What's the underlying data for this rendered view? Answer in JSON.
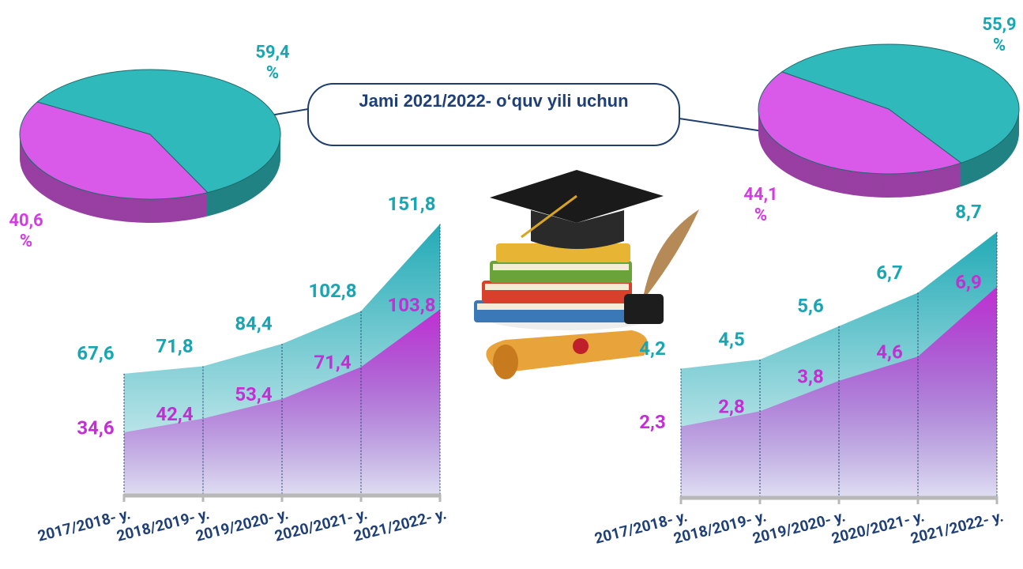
{
  "chart_data": [
    {
      "type": "pie",
      "values": [
        59.4,
        40.6
      ],
      "value_labels": [
        "59,4 %",
        "40,6 %"
      ],
      "colors": [
        "#2fb9bb",
        "#d95ae8"
      ]
    },
    {
      "type": "pie",
      "values": [
        55.9,
        44.1
      ],
      "value_labels": [
        "55,9 %",
        "44,1 %"
      ],
      "colors": [
        "#2fb9bb",
        "#d95ae8"
      ]
    },
    {
      "type": "area",
      "categories": [
        "2017/2018- y.",
        "2018/2019- y.",
        "2019/2020- y.",
        "2020/2021- y.",
        "2021/2022- y."
      ],
      "ylim": [
        0,
        160
      ],
      "series": [
        {
          "color": "#17a6b2",
          "values": [
            67.6,
            71.8,
            84.4,
            102.8,
            151.8
          ],
          "value_labels": [
            "67,6",
            "71,8",
            "84,4",
            "102,8",
            "151,8"
          ]
        },
        {
          "color": "#c22fd3",
          "values": [
            34.6,
            42.4,
            53.4,
            71.4,
            103.8
          ],
          "value_labels": [
            "34,6",
            "42,4",
            "53,4",
            "71,4",
            "103,8"
          ]
        }
      ]
    },
    {
      "type": "area",
      "categories": [
        "2017/2018- y.",
        "2018/2019- y.",
        "2019/2020- y.",
        "2020/2021- y.",
        "2021/2022- y."
      ],
      "ylim": [
        0,
        9
      ],
      "series": [
        {
          "color": "#17a6b2",
          "values": [
            4.2,
            4.5,
            5.6,
            6.7,
            8.7
          ],
          "value_labels": [
            "4,2",
            "4,5",
            "5,6",
            "6,7",
            "8,7"
          ]
        },
        {
          "color": "#c22fd3",
          "values": [
            2.3,
            2.8,
            3.8,
            4.6,
            6.9
          ],
          "value_labels": [
            "2,3",
            "2,8",
            "3,8",
            "4,6",
            "6,9"
          ]
        }
      ]
    }
  ],
  "callout": {
    "text": "Jami 2021/2022- o‘quv yili uchun"
  }
}
